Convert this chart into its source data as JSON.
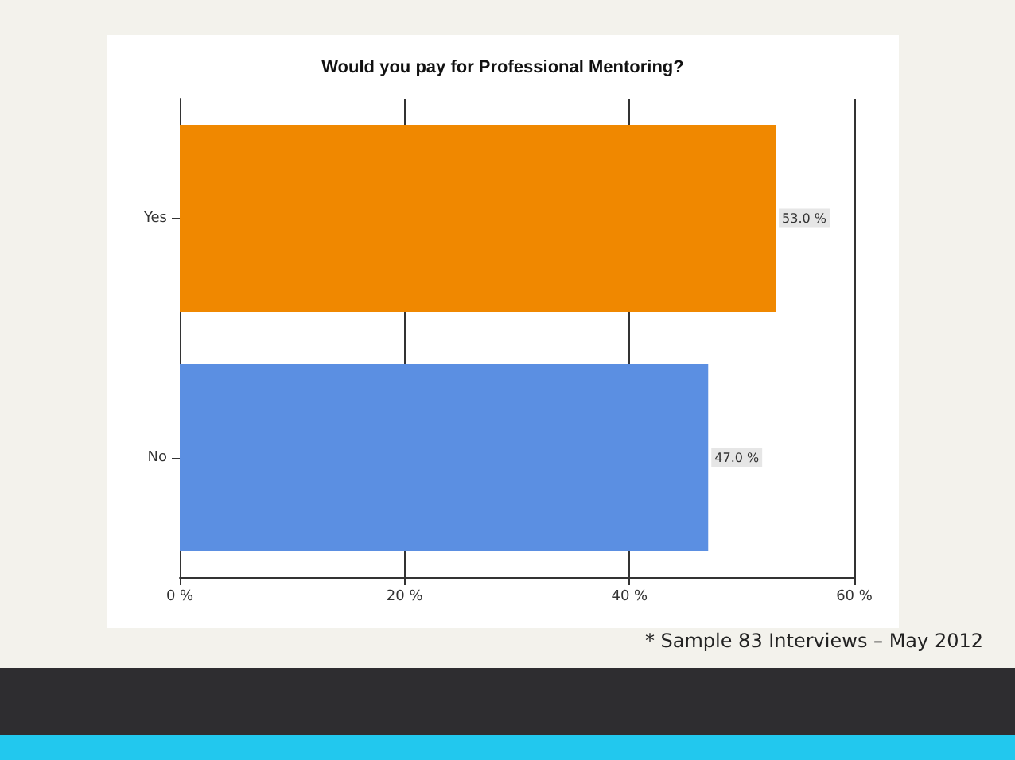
{
  "chart_data": {
    "type": "bar",
    "orientation": "horizontal",
    "title": "Would you pay for Professional Mentoring?",
    "categories": [
      "Yes",
      "No"
    ],
    "values": [
      53.0,
      47.0
    ],
    "value_labels": [
      "53.0 %",
      "47.0 %"
    ],
    "colors": [
      "#f08800",
      "#5b8fe2"
    ],
    "xlim": [
      0,
      60
    ],
    "xticks": [
      {
        "value": 0,
        "label": "0 %"
      },
      {
        "value": 20,
        "label": "20 %"
      },
      {
        "value": 40,
        "label": "40 %"
      },
      {
        "value": 60,
        "label": "60 %"
      }
    ],
    "grid": "x",
    "annotations": [
      "* Sample 83 Interviews – May 2012"
    ]
  }
}
